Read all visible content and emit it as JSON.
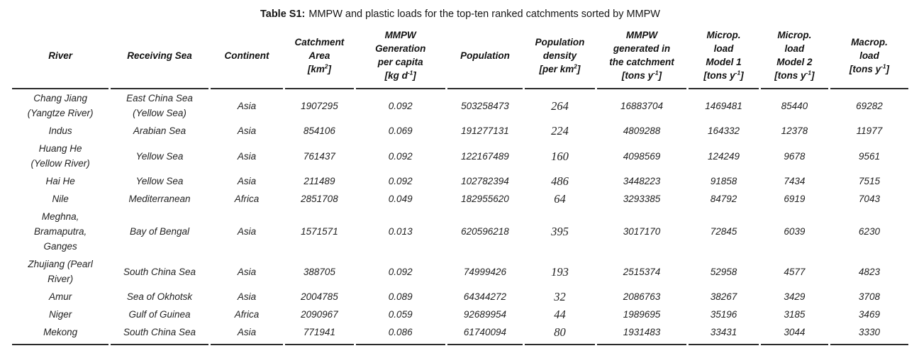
{
  "caption": {
    "label": "Table S1:",
    "text": "MMPW and plastic loads for the top-ten ranked catchments sorted by MMPW"
  },
  "table": {
    "headers": [
      {
        "key": "river",
        "lines": [
          "River"
        ]
      },
      {
        "key": "receiving_sea",
        "lines": [
          "Receiving Sea"
        ]
      },
      {
        "key": "continent",
        "lines": [
          "Continent"
        ]
      },
      {
        "key": "catchment_area",
        "lines": [
          "Catchment",
          "Area",
          "[km~2~]"
        ]
      },
      {
        "key": "mmpw_per_capita",
        "lines": [
          "MMPW",
          "Generation",
          "per capita",
          "[kg d~-1~]"
        ]
      },
      {
        "key": "population",
        "lines": [
          "Population"
        ]
      },
      {
        "key": "population_density",
        "lines": [
          "Population",
          "density",
          "[per km~2~]"
        ]
      },
      {
        "key": "mmpw_generated",
        "lines": [
          "MMPW",
          "generated in",
          "the catchment",
          "[tons y~-1~]"
        ]
      },
      {
        "key": "microp_load_model1",
        "lines": [
          "Microp.",
          "load",
          "Model 1",
          "[tons y~-1~]"
        ]
      },
      {
        "key": "microp_load_model2",
        "lines": [
          "Microp.",
          "load",
          "Model 2",
          "[tons y~-1~]"
        ]
      },
      {
        "key": "macrop_load",
        "lines": [
          "Macrop.",
          "load",
          "[tons y~-1~]"
        ]
      }
    ],
    "rows": [
      {
        "river": [
          "Chang Jiang",
          "(Yangtze River)"
        ],
        "receiving_sea": [
          "East China Sea",
          "(Yellow Sea)"
        ],
        "continent": "Asia",
        "catchment_area": "1907295",
        "mmpw_per_capita": "0.092",
        "population": "503258473",
        "population_density": "264",
        "mmpw_generated": "16883704",
        "microp_load_model1": "1469481",
        "microp_load_model2": "85440",
        "macrop_load": "69282"
      },
      {
        "river": [
          "Indus"
        ],
        "receiving_sea": [
          "Arabian Sea"
        ],
        "continent": "Asia",
        "catchment_area": "854106",
        "mmpw_per_capita": "0.069",
        "population": "191277131",
        "population_density": "224",
        "mmpw_generated": "4809288",
        "microp_load_model1": "164332",
        "microp_load_model2": "12378",
        "macrop_load": "11977"
      },
      {
        "river": [
          "Huang He",
          "(Yellow River)"
        ],
        "receiving_sea": [
          "Yellow Sea"
        ],
        "continent": "Asia",
        "catchment_area": "761437",
        "mmpw_per_capita": "0.092",
        "population": "122167489",
        "population_density": "160",
        "mmpw_generated": "4098569",
        "microp_load_model1": "124249",
        "microp_load_model2": "9678",
        "macrop_load": "9561"
      },
      {
        "river": [
          "Hai He"
        ],
        "receiving_sea": [
          "Yellow Sea"
        ],
        "continent": "Asia",
        "catchment_area": "211489",
        "mmpw_per_capita": "0.092",
        "population": "102782394",
        "population_density": "486",
        "mmpw_generated": "3448223",
        "microp_load_model1": "91858",
        "microp_load_model2": "7434",
        "macrop_load": "7515"
      },
      {
        "river": [
          "Nile"
        ],
        "receiving_sea": [
          "Mediterranean"
        ],
        "continent": "Africa",
        "catchment_area": "2851708",
        "mmpw_per_capita": "0.049",
        "population": "182955620",
        "population_density": "64",
        "mmpw_generated": "3293385",
        "microp_load_model1": "84792",
        "microp_load_model2": "6919",
        "macrop_load": "7043"
      },
      {
        "river": [
          "Meghna,",
          "Bramaputra,",
          "Ganges"
        ],
        "receiving_sea": [
          "Bay of Bengal"
        ],
        "continent": "Asia",
        "catchment_area": "1571571",
        "mmpw_per_capita": "0.013",
        "population": "620596218",
        "population_density": "395",
        "mmpw_generated": "3017170",
        "microp_load_model1": "72845",
        "microp_load_model2": "6039",
        "macrop_load": "6230"
      },
      {
        "river": [
          "Zhujiang (Pearl",
          "River)"
        ],
        "receiving_sea": [
          "South China Sea"
        ],
        "continent": "Asia",
        "catchment_area": "388705",
        "mmpw_per_capita": "0.092",
        "population": "74999426",
        "population_density": "193",
        "mmpw_generated": "2515374",
        "microp_load_model1": "52958",
        "microp_load_model2": "4577",
        "macrop_load": "4823"
      },
      {
        "river": [
          "Amur"
        ],
        "receiving_sea": [
          "Sea of Okhotsk"
        ],
        "continent": "Asia",
        "catchment_area": "2004785",
        "mmpw_per_capita": "0.089",
        "population": "64344272",
        "population_density": "32",
        "mmpw_generated": "2086763",
        "microp_load_model1": "38267",
        "microp_load_model2": "3429",
        "macrop_load": "3708"
      },
      {
        "river": [
          "Niger"
        ],
        "receiving_sea": [
          "Gulf of Guinea"
        ],
        "continent": "Africa",
        "catchment_area": "2090967",
        "mmpw_per_capita": "0.059",
        "population": "92689954",
        "population_density": "44",
        "mmpw_generated": "1989695",
        "microp_load_model1": "35196",
        "microp_load_model2": "3185",
        "macrop_load": "3469"
      },
      {
        "river": [
          "Mekong"
        ],
        "receiving_sea": [
          "South China Sea"
        ],
        "continent": "Asia",
        "catchment_area": "771941",
        "mmpw_per_capita": "0.086",
        "population": "61740094",
        "population_density": "80",
        "mmpw_generated": "1931483",
        "microp_load_model1": "33431",
        "microp_load_model2": "3044",
        "macrop_load": "3330"
      }
    ]
  }
}
